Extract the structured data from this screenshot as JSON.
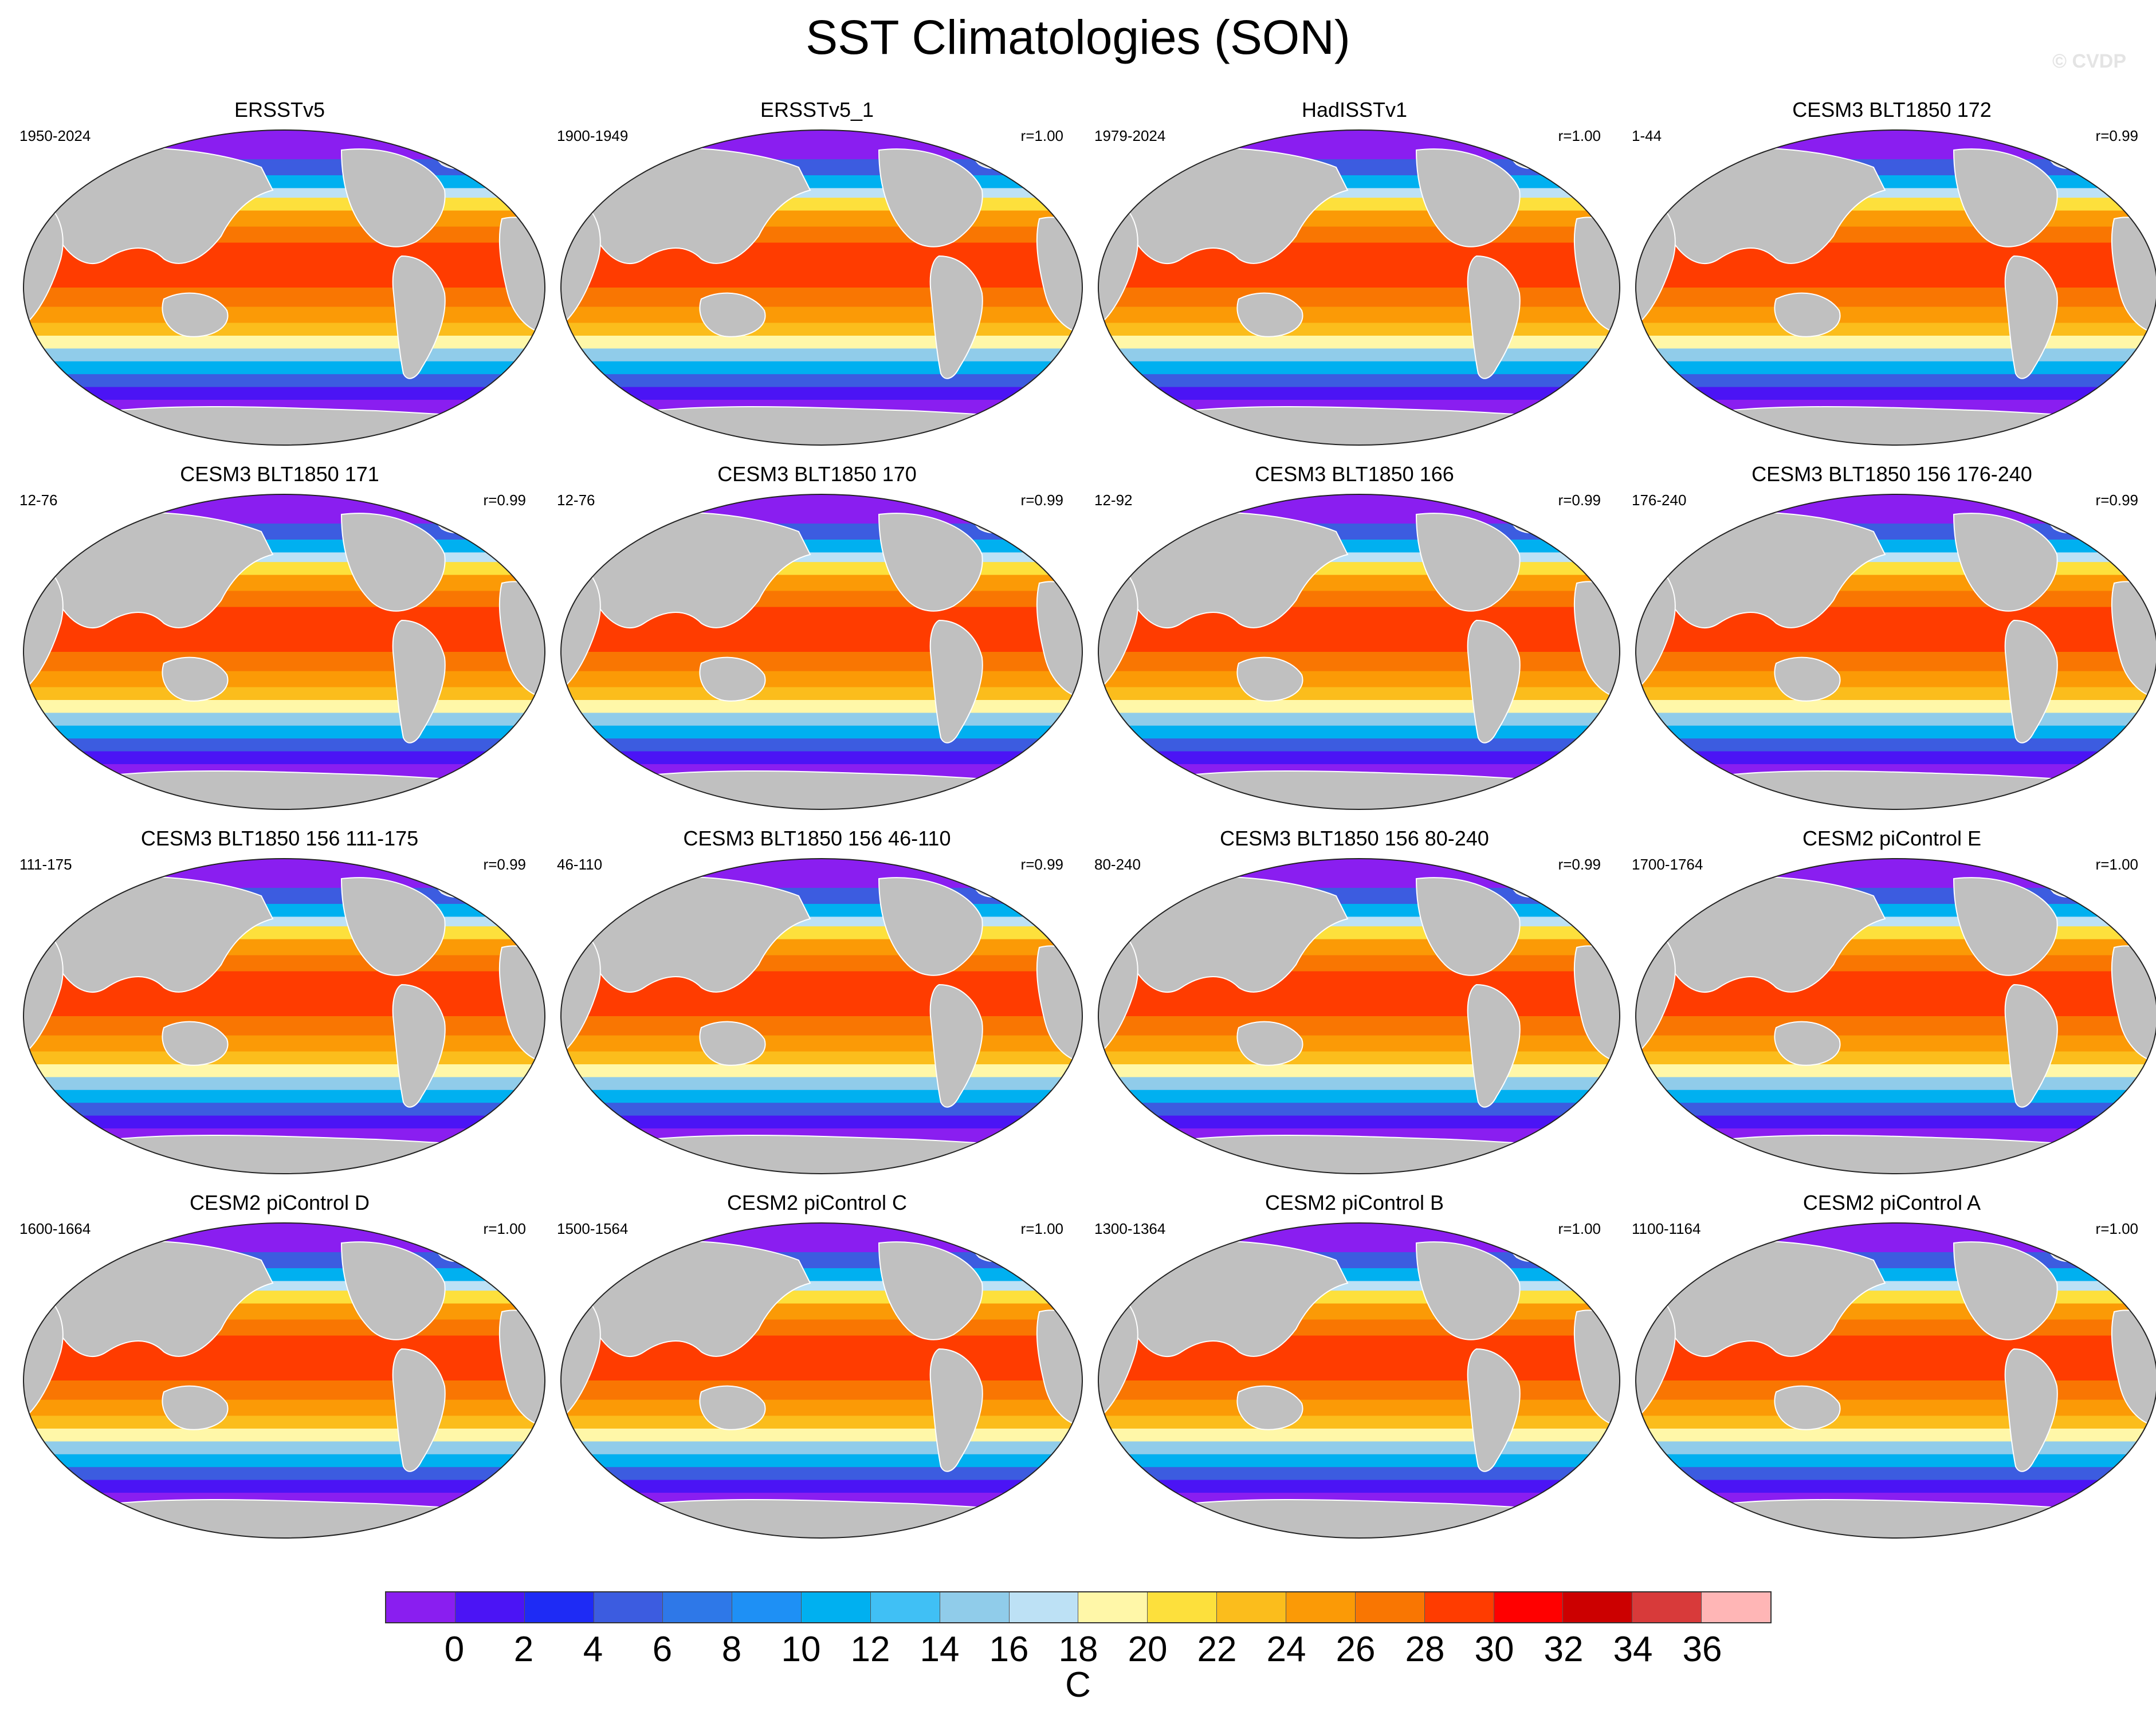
{
  "title": "SST Climatologies (SON)",
  "watermark": "© CVDP",
  "land_color": "#c0c0c0",
  "panels": [
    {
      "name": "ERSSTv5",
      "years": "1950-2024",
      "corr": ""
    },
    {
      "name": "ERSSTv5_1",
      "years": "1900-1949",
      "corr": "r=1.00"
    },
    {
      "name": "HadISSTv1",
      "years": "1979-2024",
      "corr": "r=1.00"
    },
    {
      "name": "CESM3 BLT1850 172",
      "years": "1-44",
      "corr": "r=0.99"
    },
    {
      "name": "CESM3 BLT1850 171",
      "years": "12-76",
      "corr": "r=0.99"
    },
    {
      "name": "CESM3 BLT1850 170",
      "years": "12-76",
      "corr": "r=0.99"
    },
    {
      "name": "CESM3 BLT1850 166",
      "years": "12-92",
      "corr": "r=0.99"
    },
    {
      "name": "CESM3 BLT1850 156 176-240",
      "years": "176-240",
      "corr": "r=0.99"
    },
    {
      "name": "CESM3 BLT1850 156 111-175",
      "years": "111-175",
      "corr": "r=0.99"
    },
    {
      "name": "CESM3 BLT1850 156 46-110",
      "years": "46-110",
      "corr": "r=0.99"
    },
    {
      "name": "CESM3 BLT1850 156 80-240",
      "years": "80-240",
      "corr": "r=0.99"
    },
    {
      "name": "CESM2 piControl E",
      "years": "1700-1764",
      "corr": "r=1.00"
    },
    {
      "name": "CESM2 piControl D",
      "years": "1600-1664",
      "corr": "r=1.00"
    },
    {
      "name": "CESM2 piControl C",
      "years": "1500-1564",
      "corr": "r=1.00"
    },
    {
      "name": "CESM2 piControl B",
      "years": "1300-1364",
      "corr": "r=1.00"
    },
    {
      "name": "CESM2 piControl A",
      "years": "1100-1164",
      "corr": "r=1.00"
    }
  ],
  "colorbar": {
    "colors": [
      "#8a1ef0",
      "#4b14f5",
      "#1e2bf5",
      "#3c5ce0",
      "#2e78e8",
      "#1e90f5",
      "#00b0f0",
      "#40c0f5",
      "#90ccea",
      "#bde1f5",
      "#fff7a8",
      "#fde03c",
      "#fbbd1c",
      "#fb9a06",
      "#f97602",
      "#ff3c00",
      "#ff0000",
      "#cc0000",
      "#d83a3a",
      "#ffb6b6"
    ],
    "tick_labels": [
      "0",
      "2",
      "4",
      "6",
      "8",
      "10",
      "12",
      "14",
      "16",
      "18",
      "20",
      "22",
      "24",
      "26",
      "28",
      "30",
      "32",
      "34",
      "36"
    ],
    "units": "C"
  }
}
